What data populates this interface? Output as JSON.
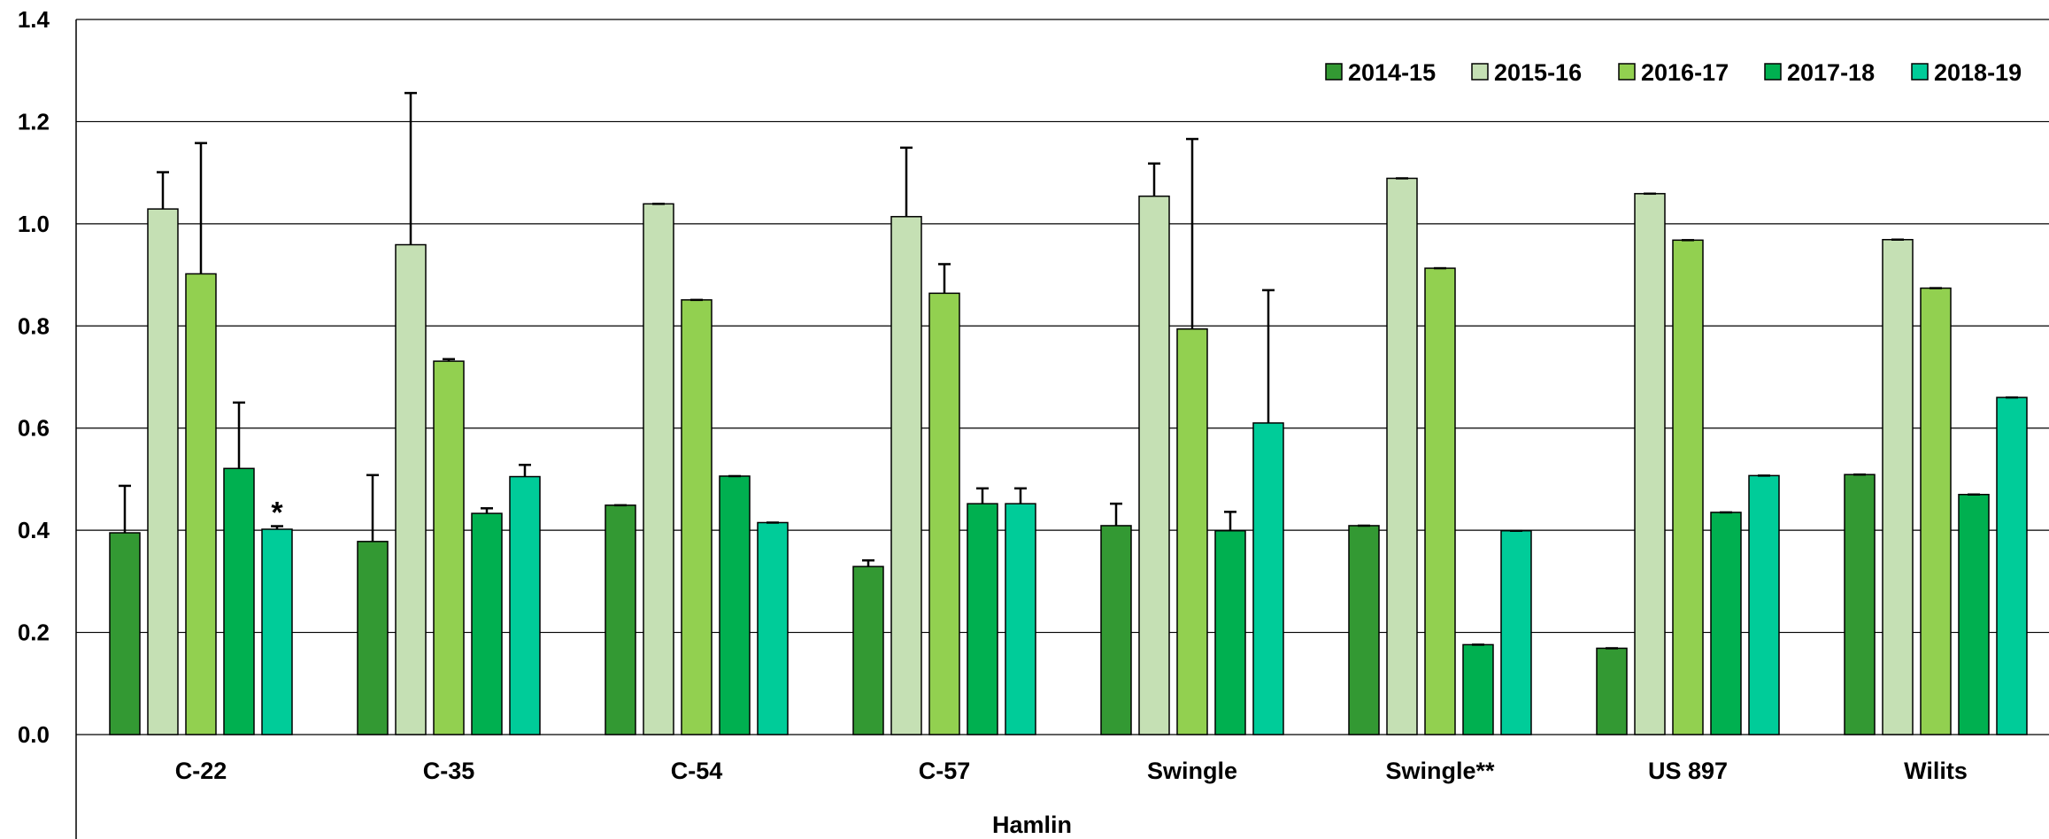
{
  "chart_data": {
    "type": "bar",
    "title": "",
    "xlabel": "Hamlin",
    "ylabel": "",
    "ylim": [
      0,
      1.4
    ],
    "yticks": [
      "0.0",
      "0.2",
      "0.4",
      "0.6",
      "0.8",
      "1.0",
      "1.2",
      "1.4"
    ],
    "grid": true,
    "legend_position": "top-right",
    "categories": [
      "C-22",
      "C-35",
      "C-54",
      "C-57",
      "Swingle",
      "Swingle**",
      "US 897",
      "Wilits"
    ],
    "series": [
      {
        "name": "2014-15",
        "color": "#339933",
        "values": [
          0.395,
          0.378,
          0.449,
          0.329,
          0.409,
          0.409,
          0.169,
          0.509
        ],
        "errors": [
          0.092,
          0.13,
          0,
          0.012,
          0.043,
          0,
          0,
          0
        ]
      },
      {
        "name": "2015-16",
        "color": "#c5e0b4",
        "values": [
          1.029,
          0.959,
          1.039,
          1.014,
          1.054,
          1.089,
          1.059,
          0.969
        ],
        "errors": [
          0.072,
          0.297,
          0,
          0.135,
          0.064,
          0,
          0,
          0
        ]
      },
      {
        "name": "2016-17",
        "color": "#92d050",
        "values": [
          0.902,
          0.731,
          0.851,
          0.864,
          0.794,
          0.913,
          0.968,
          0.874
        ],
        "errors": [
          0.256,
          0.004,
          0,
          0.057,
          0.372,
          0,
          0,
          0
        ]
      },
      {
        "name": "2017-18",
        "color": "#00b050",
        "values": [
          0.521,
          0.433,
          0.506,
          0.452,
          0.399,
          0.176,
          0.435,
          0.47
        ],
        "errors": [
          0.129,
          0.01,
          0,
          0.03,
          0.037,
          0,
          0,
          0
        ]
      },
      {
        "name": "2018-19",
        "color": "#00cc99",
        "values": [
          0.402,
          0.505,
          0.415,
          0.452,
          0.61,
          0.399,
          0.507,
          0.66
        ],
        "errors": [
          0.006,
          0.023,
          0,
          0.03,
          0.26,
          0,
          0,
          0
        ]
      }
    ],
    "annotations": [
      {
        "text": "*",
        "category": "C-22",
        "series": "2018-19"
      }
    ]
  }
}
